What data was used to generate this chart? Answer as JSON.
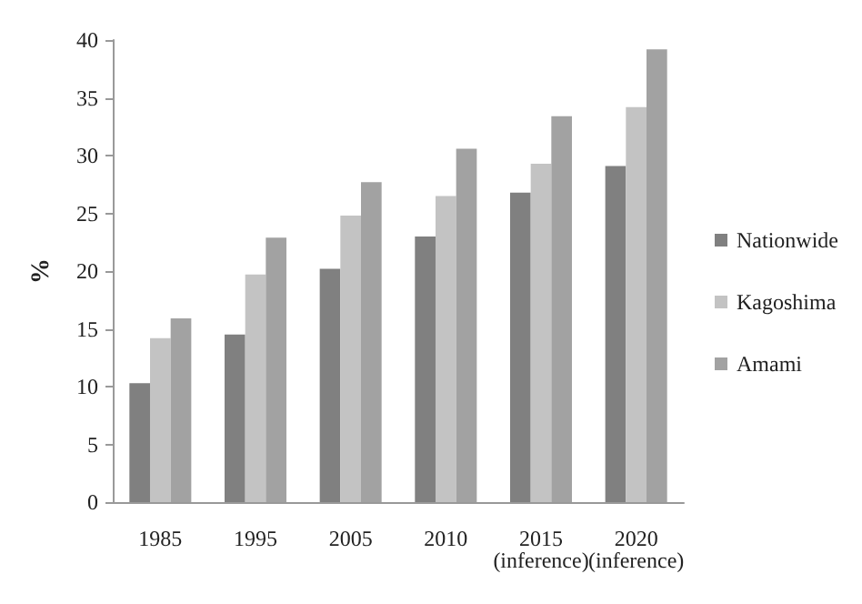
{
  "chart_data": {
    "type": "bar",
    "ylabel": "%",
    "categories": [
      "1985",
      "1995",
      "2005",
      "2010",
      "2015\n(inference)",
      "2020\n(inference)"
    ],
    "series": [
      {
        "name": "Nationwide",
        "color": "#808080",
        "values": [
          10.3,
          14.5,
          20.2,
          23.0,
          26.8,
          29.1
        ]
      },
      {
        "name": "Kagoshima",
        "color": "#c3c3c3",
        "values": [
          14.2,
          19.7,
          24.8,
          26.5,
          29.3,
          34.2
        ]
      },
      {
        "name": "Amami",
        "color": "#a2a2a2",
        "values": [
          15.9,
          22.9,
          27.7,
          30.6,
          33.4,
          39.2
        ]
      }
    ],
    "ylim": [
      0,
      40
    ],
    "yticks": [
      0,
      5,
      10,
      15,
      20,
      25,
      30,
      35,
      40
    ],
    "grid": false,
    "legend": "right"
  }
}
